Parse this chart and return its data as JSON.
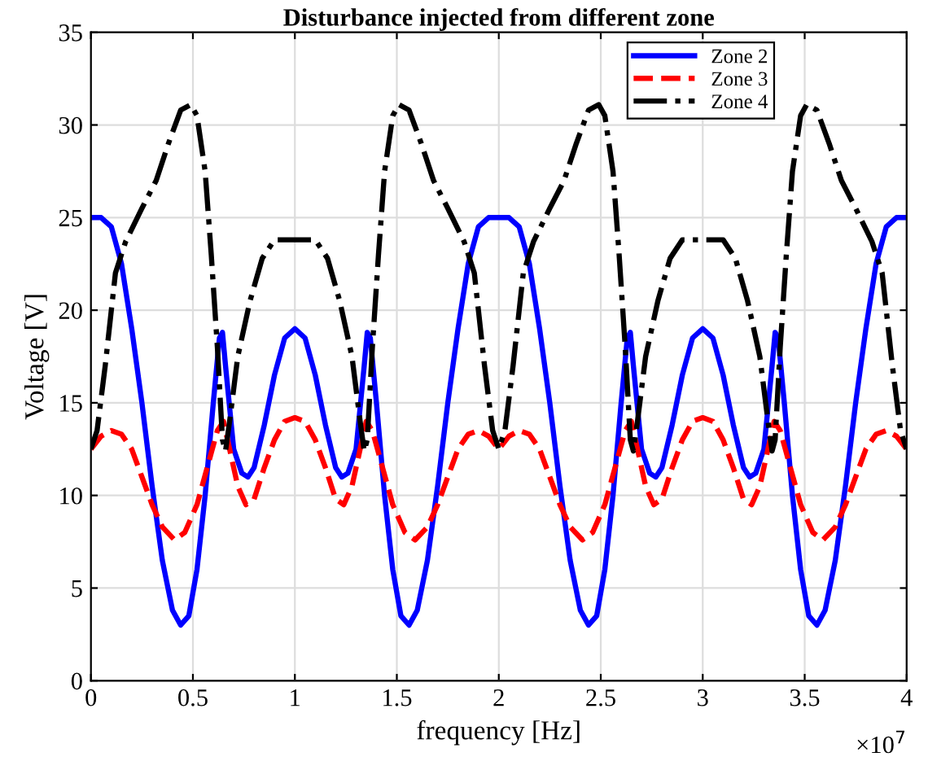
{
  "chart_data": {
    "type": "line",
    "title": "Disturbance injected from different zone",
    "xlabel": "frequency [Hz]",
    "ylabel": "Voltage [V]",
    "annotations": [
      "×10$^{7}$"
    ],
    "xlim": [
      0,
      4
    ],
    "xticks": [
      0,
      0.5,
      1,
      1.5,
      2,
      2.5,
      3,
      3.5,
      4
    ],
    "ylim": [
      0,
      35
    ],
    "yticks": [
      0,
      5,
      10,
      15,
      20,
      25,
      30,
      35
    ],
    "grid": true,
    "legend": "top right",
    "marker": "none",
    "series": [
      {
        "name": "Zone 2",
        "color": "#0000ff",
        "line_style": "solid",
        "x": [
          0,
          0.05,
          0.1,
          0.15,
          0.2,
          0.25,
          0.3,
          0.35,
          0.4,
          0.44,
          0.48,
          0.52,
          0.56,
          0.6,
          0.63,
          0.645,
          0.66,
          0.7,
          0.74,
          0.77,
          0.8,
          0.85,
          0.9,
          0.95,
          1,
          1.05,
          1.1,
          1.15,
          1.2,
          1.23,
          1.26,
          1.3,
          1.34,
          1.355,
          1.37,
          1.4,
          1.44,
          1.48,
          1.52,
          1.56,
          1.6,
          1.65,
          1.7,
          1.75,
          1.8,
          1.85,
          1.9,
          1.95,
          2,
          2.05,
          2.1,
          2.15,
          2.2,
          2.25,
          2.3,
          2.35,
          2.4,
          2.44,
          2.48,
          2.52,
          2.56,
          2.6,
          2.63,
          2.645,
          2.66,
          2.7,
          2.74,
          2.77,
          2.8,
          2.85,
          2.9,
          2.95,
          3,
          3.05,
          3.1,
          3.15,
          3.2,
          3.23,
          3.26,
          3.3,
          3.34,
          3.355,
          3.37,
          3.4,
          3.44,
          3.48,
          3.52,
          3.56,
          3.6,
          3.65,
          3.7,
          3.75,
          3.8,
          3.85,
          3.9,
          3.95,
          4
        ],
        "values": [
          25,
          25,
          24.5,
          22.5,
          19,
          15,
          10.5,
          6.5,
          3.8,
          3,
          3.5,
          6,
          10,
          15,
          18.5,
          18.8,
          17,
          12.5,
          11.2,
          11,
          11.5,
          13.8,
          16.5,
          18.5,
          19,
          18.5,
          16.5,
          13.8,
          11.5,
          11,
          11.2,
          12.5,
          17,
          18.8,
          18.5,
          15,
          10,
          6,
          3.5,
          3,
          3.8,
          6.5,
          10.5,
          15,
          19,
          22.5,
          24.5,
          25,
          25,
          25,
          24.5,
          22.5,
          19,
          15,
          10.5,
          6.5,
          3.8,
          3,
          3.5,
          6,
          10,
          15,
          18.5,
          18.8,
          17,
          12.5,
          11.2,
          11,
          11.5,
          13.8,
          16.5,
          18.5,
          19,
          18.5,
          16.5,
          13.8,
          11.5,
          11,
          11.2,
          12.5,
          17,
          18.8,
          18.5,
          15,
          10,
          6,
          3.5,
          3,
          3.8,
          6.5,
          10.5,
          15,
          19,
          22.5,
          24.5,
          25,
          25
        ]
      },
      {
        "name": "Zone 3",
        "color": "#ff0000",
        "line_style": "dashed",
        "x": [
          0,
          0.05,
          0.1,
          0.15,
          0.2,
          0.25,
          0.3,
          0.35,
          0.41,
          0.46,
          0.52,
          0.57,
          0.62,
          0.65,
          0.68,
          0.72,
          0.76,
          0.8,
          0.85,
          0.9,
          0.95,
          1,
          1.05,
          1.1,
          1.15,
          1.2,
          1.24,
          1.28,
          1.32,
          1.35,
          1.38,
          1.43,
          1.48,
          1.54,
          1.59,
          1.65,
          1.7,
          1.75,
          1.8,
          1.85,
          1.9,
          1.95,
          2,
          2.05,
          2.1,
          2.15,
          2.2,
          2.25,
          2.3,
          2.35,
          2.41,
          2.46,
          2.52,
          2.57,
          2.62,
          2.65,
          2.68,
          2.72,
          2.76,
          2.8,
          2.85,
          2.9,
          2.95,
          3,
          3.05,
          3.1,
          3.15,
          3.2,
          3.24,
          3.28,
          3.32,
          3.35,
          3.38,
          3.43,
          3.48,
          3.54,
          3.59,
          3.65,
          3.7,
          3.75,
          3.8,
          3.85,
          3.9,
          3.95,
          4
        ],
        "values": [
          12.5,
          13.2,
          13.5,
          13.3,
          12.5,
          11,
          9.5,
          8.3,
          7.6,
          8,
          9.5,
          11.5,
          13.5,
          14,
          12.5,
          10.5,
          9.5,
          9.8,
          11.5,
          13,
          14,
          14.2,
          14,
          13,
          11.5,
          9.8,
          9.5,
          10.5,
          12.5,
          14,
          13.5,
          11.5,
          9.5,
          8,
          7.6,
          8.3,
          9.5,
          11,
          12.5,
          13.3,
          13.5,
          13.2,
          12.5,
          13.2,
          13.5,
          13.3,
          12.5,
          11,
          9.5,
          8.3,
          7.6,
          8,
          9.5,
          11.5,
          13.5,
          14,
          12.5,
          10.5,
          9.5,
          9.8,
          11.5,
          13,
          14,
          14.2,
          14,
          13,
          11.5,
          9.8,
          9.5,
          10.5,
          12.5,
          14,
          13.5,
          11.5,
          9.5,
          8,
          7.6,
          8.3,
          9.5,
          11,
          12.5,
          13.3,
          13.5,
          13.2,
          12.5
        ]
      },
      {
        "name": "Zone 4",
        "color": "#000000",
        "line_style": "dashdot",
        "x": [
          0,
          0.03,
          0.07,
          0.12,
          0.17,
          0.25,
          0.32,
          0.38,
          0.44,
          0.49,
          0.52,
          0.56,
          0.59,
          0.62,
          0.645,
          0.66,
          0.68,
          0.72,
          0.78,
          0.84,
          0.9,
          0.95,
          1,
          1.05,
          1.1,
          1.16,
          1.22,
          1.28,
          1.32,
          1.34,
          1.355,
          1.38,
          1.41,
          1.44,
          1.48,
          1.51,
          1.56,
          1.62,
          1.68,
          1.75,
          1.83,
          1.88,
          1.93,
          1.97,
          2,
          2.03,
          2.07,
          2.12,
          2.17,
          2.25,
          2.32,
          2.38,
          2.44,
          2.49,
          2.52,
          2.56,
          2.59,
          2.62,
          2.645,
          2.66,
          2.68,
          2.72,
          2.78,
          2.84,
          2.9,
          2.95,
          3,
          3.05,
          3.1,
          3.16,
          3.22,
          3.28,
          3.32,
          3.34,
          3.355,
          3.38,
          3.41,
          3.44,
          3.48,
          3.51,
          3.56,
          3.62,
          3.68,
          3.75,
          3.83,
          3.88,
          3.93,
          3.97,
          4
        ],
        "values": [
          12.5,
          13.5,
          17,
          22,
          23.7,
          25.5,
          27,
          29,
          30.8,
          31.1,
          30.5,
          27.5,
          23,
          18,
          13,
          12.4,
          14,
          17.5,
          20.5,
          22.8,
          23.8,
          23.8,
          23.8,
          23.8,
          23.8,
          22.8,
          20.5,
          17.5,
          14,
          12.4,
          13,
          18,
          23,
          27.5,
          30.5,
          31.1,
          30.8,
          29,
          27,
          25.5,
          23.7,
          22,
          17,
          13.5,
          12.5,
          13.5,
          17,
          22,
          23.7,
          25.5,
          27,
          29,
          30.8,
          31.1,
          30.5,
          27.5,
          23,
          18,
          13,
          12.4,
          14,
          17.5,
          20.5,
          22.8,
          23.8,
          23.8,
          23.8,
          23.8,
          23.8,
          22.8,
          20.5,
          17.5,
          14,
          12.4,
          13,
          18,
          23,
          27.5,
          30.5,
          31.1,
          30.8,
          29,
          27,
          25.5,
          23.7,
          22,
          17,
          13.5,
          12.5
        ]
      }
    ]
  }
}
